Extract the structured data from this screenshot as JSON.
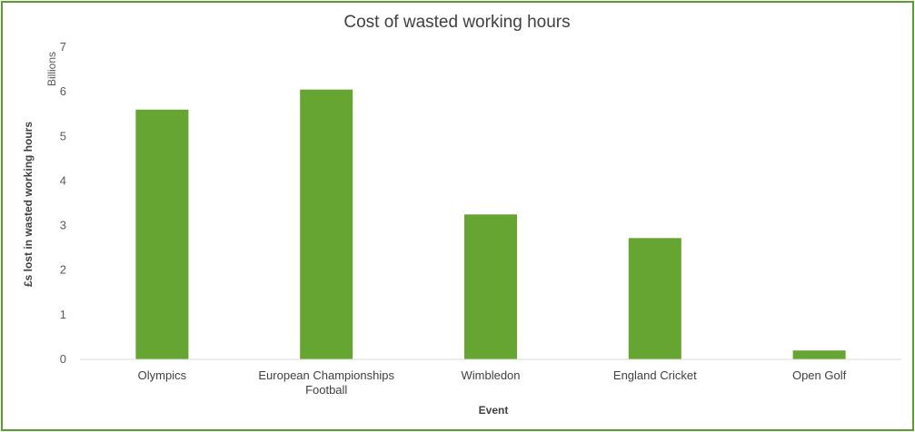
{
  "chart_data": {
    "type": "bar",
    "title": "Cost of wasted working hours",
    "xlabel": "Event",
    "ylabel": "£s lost in wasted working hours",
    "y_unit": "Billions",
    "categories": [
      [
        "Olympics"
      ],
      [
        "European Championships",
        "Football"
      ],
      [
        "Wimbledon"
      ],
      [
        "England Cricket"
      ],
      [
        "Open Golf"
      ]
    ],
    "values": [
      5.6,
      6.05,
      3.25,
      2.72,
      0.2
    ],
    "ylim": [
      0,
      7
    ],
    "yticks": [
      "0",
      "1",
      "2",
      "3",
      "4",
      "5",
      "6",
      "7"
    ],
    "grid": false,
    "legend": "none",
    "colors": {
      "bar": "#66a532",
      "frame": "#5a9e2f",
      "baseline": "#d9d9d9"
    }
  }
}
